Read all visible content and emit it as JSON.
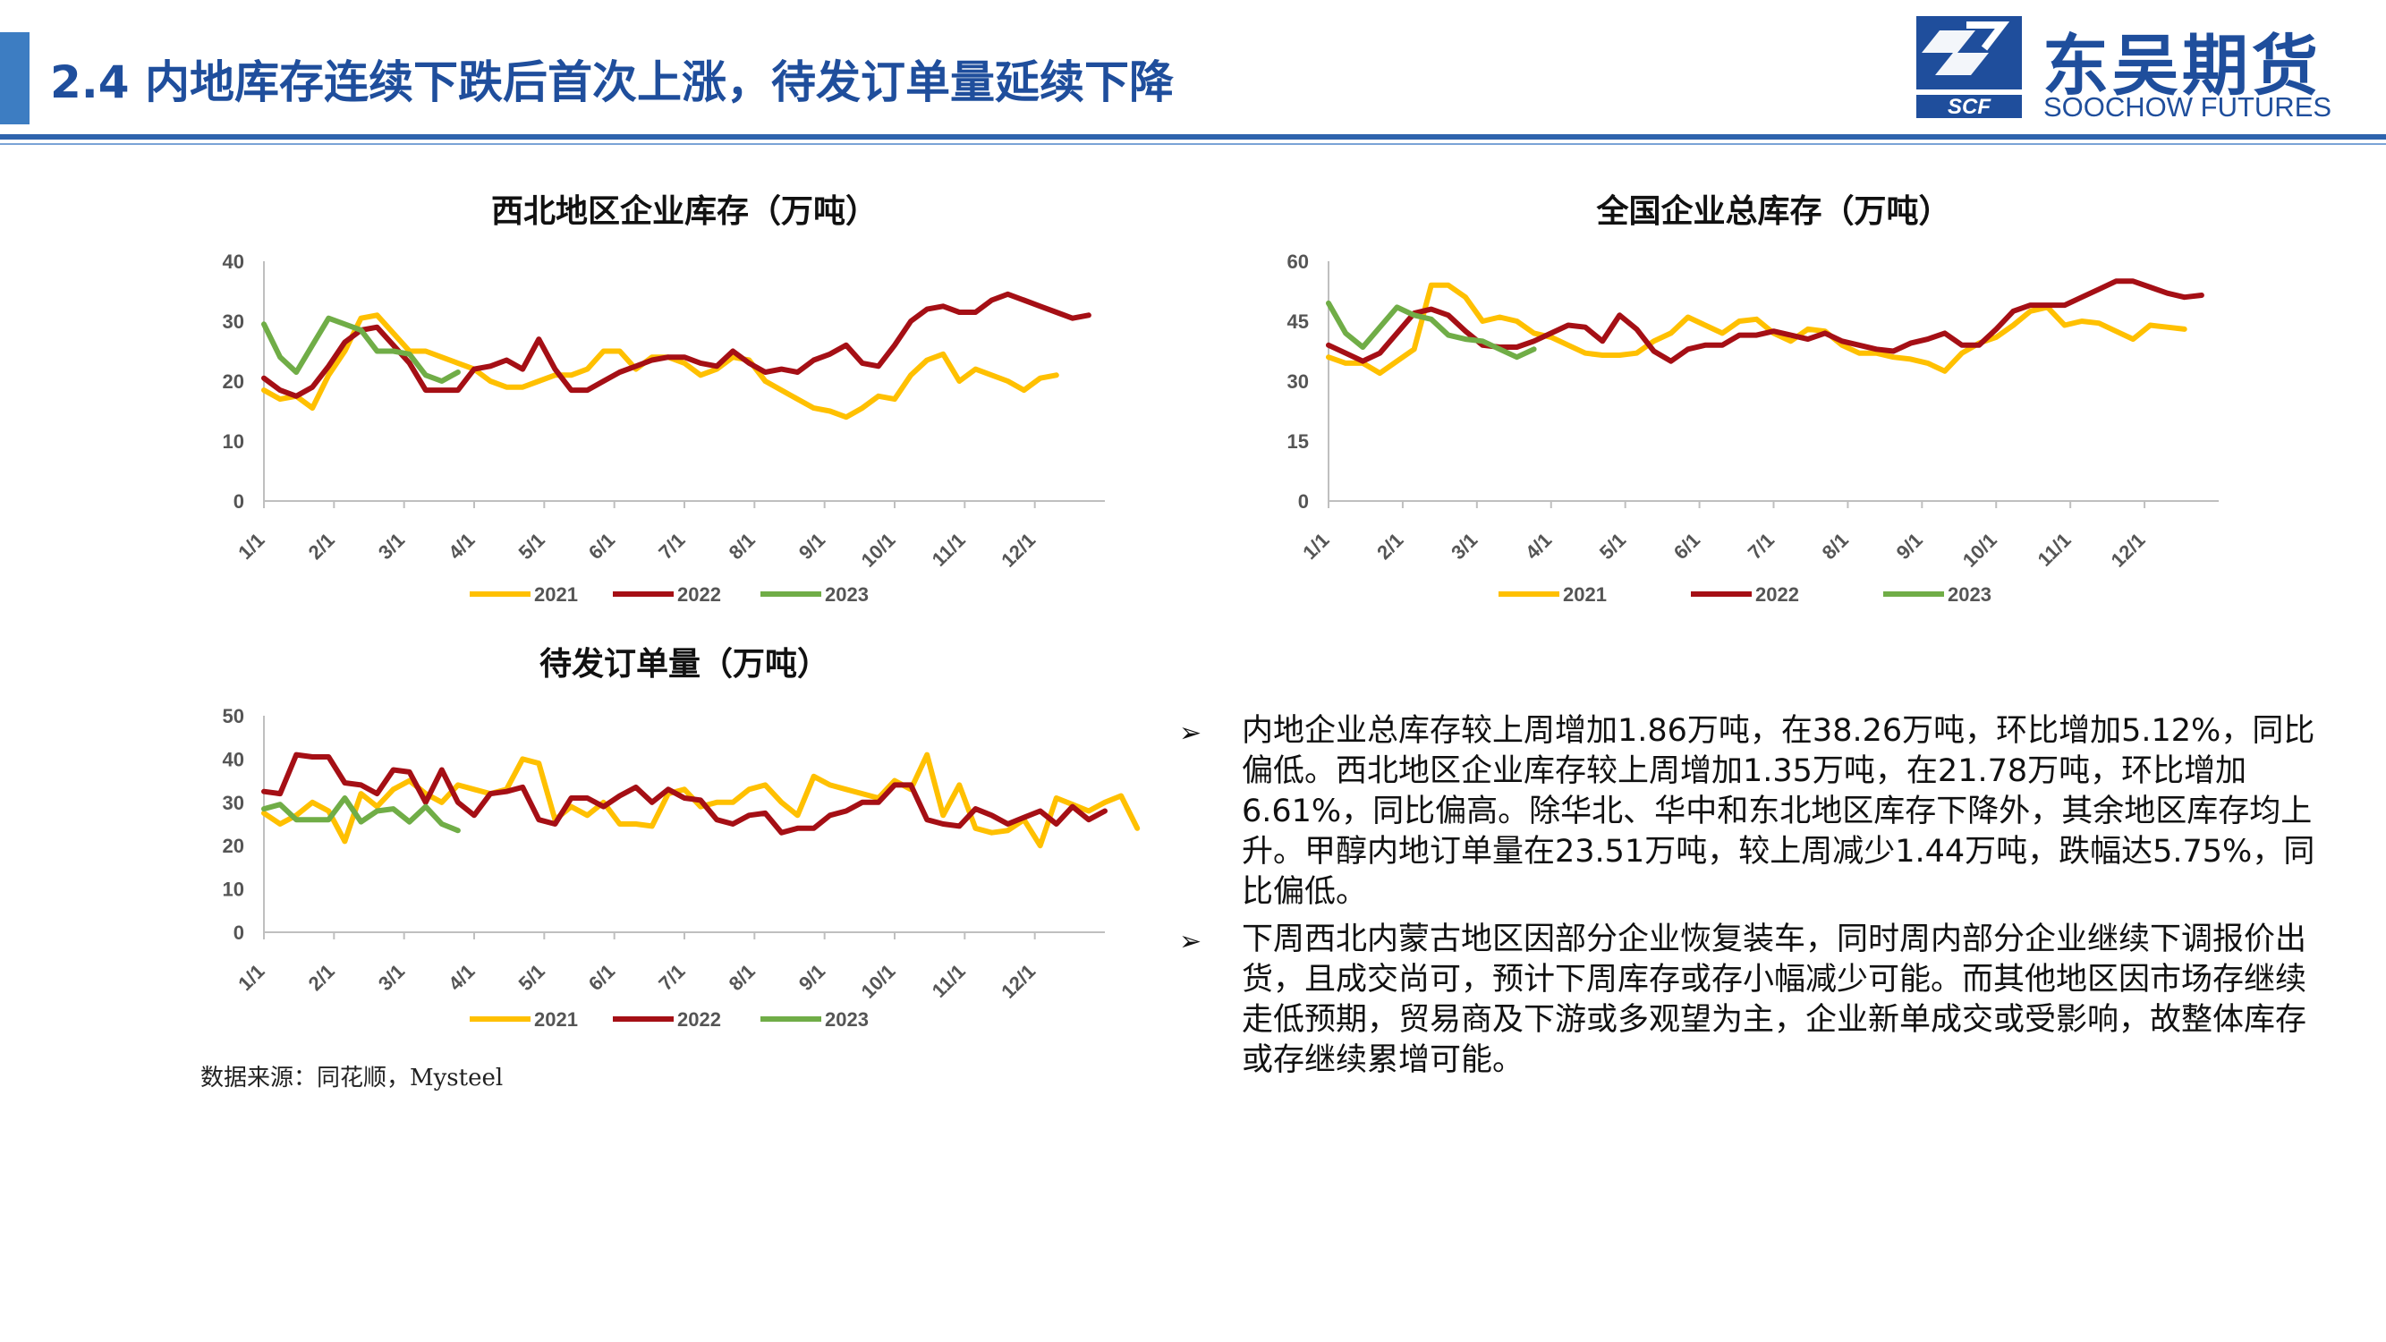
{
  "header": {
    "title": "2.4 内地库存连续下跌后首次上涨，待发订单量延续下降",
    "logo_cn": "东吴期货",
    "logo_en": "SOOCHOW FUTURES",
    "logo_mark": "SCF"
  },
  "colors": {
    "accent": "#1f4e9c",
    "y2021": "#ffc000",
    "y2022": "#a50f15",
    "y2023": "#70ad47"
  },
  "chart_data": [
    {
      "type": "line",
      "title": "西北地区企业库存（万吨）",
      "x_tick_labels": [
        "1/1",
        "2/1",
        "3/1",
        "4/1",
        "5/1",
        "6/1",
        "7/1",
        "8/1",
        "9/1",
        "10/1",
        "11/1",
        "12/1"
      ],
      "x_unit": "week of year",
      "ylim": [
        0,
        40
      ],
      "yticks": [
        0,
        10,
        20,
        30,
        40
      ],
      "legend_position": "bottom",
      "series": [
        {
          "name": "2021",
          "color": "#ffc000",
          "values": [
            18.5,
            17,
            17.5,
            15.5,
            21,
            25,
            30.5,
            31,
            28,
            25,
            25,
            24,
            23,
            22,
            20,
            19,
            19,
            20,
            21,
            21,
            22,
            25,
            25,
            22,
            24,
            24,
            23,
            21,
            22,
            24,
            23.5,
            20,
            18.5,
            17,
            15.5,
            15,
            14,
            15.5,
            17.5,
            17,
            21,
            23.5,
            24.5,
            20,
            22,
            21,
            20,
            18.5,
            20.5,
            21
          ]
        },
        {
          "name": "2022",
          "color": "#a50f15",
          "values": [
            20.5,
            18.5,
            17.5,
            19,
            22.5,
            26.5,
            28.5,
            29,
            26,
            23,
            18.5,
            18.5,
            18.5,
            22,
            22.5,
            23.5,
            22,
            27,
            22,
            18.5,
            18.5,
            20,
            21.5,
            22.5,
            23.5,
            24,
            24,
            23,
            22.5,
            25,
            23,
            21.5,
            22,
            21.5,
            23.5,
            24.5,
            26,
            23,
            22.5,
            26,
            30,
            32,
            32.5,
            31.5,
            31.5,
            33.5,
            34.5,
            33.5,
            32.5,
            31.5,
            30.5,
            31
          ]
        },
        {
          "name": "2023",
          "color": "#70ad47",
          "values": [
            29.5,
            24,
            21.5,
            26,
            30.5,
            29.5,
            28.5,
            25,
            25,
            24.5,
            21,
            20,
            21.5
          ]
        }
      ]
    },
    {
      "type": "line",
      "title": "全国企业总库存（万吨）",
      "x_tick_labels": [
        "1/1",
        "2/1",
        "3/1",
        "4/1",
        "5/1",
        "6/1",
        "7/1",
        "8/1",
        "9/1",
        "10/1",
        "11/1",
        "12/1"
      ],
      "x_unit": "week of year",
      "ylim": [
        0,
        60
      ],
      "yticks": [
        0,
        15,
        30,
        45,
        60
      ],
      "legend_position": "bottom",
      "series": [
        {
          "name": "2021",
          "color": "#ffc000",
          "values": [
            36,
            34.5,
            34.5,
            32,
            35,
            38,
            54,
            54,
            51,
            45,
            46,
            45,
            42,
            41,
            39,
            37,
            36.5,
            36.5,
            37,
            40,
            42,
            46,
            44,
            42,
            45,
            45.5,
            42,
            40,
            43,
            42.5,
            39,
            37,
            37,
            36,
            35.5,
            34.5,
            32.5,
            37,
            39.5,
            41,
            44,
            47.5,
            48.5,
            44,
            45,
            44.5,
            42.5,
            40.5,
            44,
            43.5,
            43
          ]
        },
        {
          "name": "2022",
          "color": "#a50f15",
          "values": [
            39,
            37,
            35,
            37,
            42,
            47,
            48,
            46.5,
            42.5,
            39,
            38.5,
            38.5,
            40,
            42,
            44,
            43.5,
            40,
            46.5,
            43,
            37.5,
            35,
            38,
            39,
            39,
            41.5,
            41.5,
            42.5,
            41.5,
            40.5,
            42,
            40,
            39,
            38,
            37.5,
            39.5,
            40.5,
            42,
            39,
            39,
            43,
            47.5,
            49,
            49,
            49,
            51,
            53,
            55,
            55,
            53.5,
            52,
            51,
            51.5
          ]
        },
        {
          "name": "2023",
          "color": "#70ad47",
          "values": [
            49.5,
            42,
            38.5,
            43.5,
            48.5,
            46.5,
            45.5,
            41.5,
            40.5,
            40,
            38,
            36,
            38
          ]
        }
      ]
    },
    {
      "type": "line",
      "title": "待发订单量（万吨）",
      "x_tick_labels": [
        "1/1",
        "2/1",
        "3/1",
        "4/1",
        "5/1",
        "6/1",
        "7/1",
        "8/1",
        "9/1",
        "10/1",
        "11/1",
        "12/1"
      ],
      "x_unit": "week of year",
      "ylim": [
        0,
        50
      ],
      "yticks": [
        0,
        10,
        20,
        30,
        40,
        50
      ],
      "legend_position": "bottom",
      "series": [
        {
          "name": "2021",
          "color": "#ffc000",
          "values": [
            27.5,
            25,
            27,
            30,
            28,
            21,
            32,
            29,
            33,
            35,
            32,
            30,
            34,
            33,
            32,
            33,
            40,
            39,
            26,
            29,
            27,
            30,
            25,
            25,
            24.5,
            32,
            33,
            29,
            30,
            30,
            33,
            34,
            30,
            27,
            36,
            34,
            33,
            32,
            31,
            35,
            33,
            41,
            27,
            34,
            24,
            23,
            23.5,
            26,
            20,
            31,
            29.5,
            28,
            30,
            31.5,
            24
          ]
        },
        {
          "name": "2022",
          "color": "#a50f15",
          "values": [
            32.5,
            32,
            41,
            40.5,
            40.5,
            34.5,
            34,
            32,
            37.5,
            37,
            30,
            37.5,
            30,
            27,
            32,
            32.5,
            33.5,
            26,
            25,
            31,
            31,
            29,
            31.5,
            33.5,
            30,
            33,
            31,
            30.5,
            26,
            25,
            27,
            27.5,
            23,
            24,
            24,
            27,
            28,
            30,
            30,
            34,
            34,
            26,
            25,
            24.5,
            28.5,
            27,
            25,
            26.5,
            28,
            25,
            29,
            26,
            28
          ]
        },
        {
          "name": "2023",
          "color": "#70ad47",
          "values": [
            28.5,
            29.5,
            26,
            26,
            26,
            31,
            25.5,
            28,
            28.5,
            25.5,
            29,
            25,
            23.5
          ]
        }
      ]
    }
  ],
  "bullets": [
    "内地企业总库存较上周增加1.86万吨，在38.26万吨，环比增加5.12%，同比偏低。西北地区企业库存较上周增加1.35万吨，在21.78万吨，环比增加6.61%，同比偏高。除华北、华中和东北地区库存下降外，其余地区库存均上升。甲醇内地订单量在23.51万吨，较上周减少1.44万吨，跌幅达5.75%，同比偏低。",
    "下周西北内蒙古地区因部分企业恢复装车，同时周内部分企业继续下调报价出货，且成交尚可，预计下周库存或存小幅减少可能。而其他地区因市场存继续走低预期，贸易商及下游或多观望为主，企业新单成交或受影响，故整体库存或存继续累增可能。"
  ],
  "bullet_marker": "➢",
  "source": "数据来源：同花顺，Mysteel"
}
